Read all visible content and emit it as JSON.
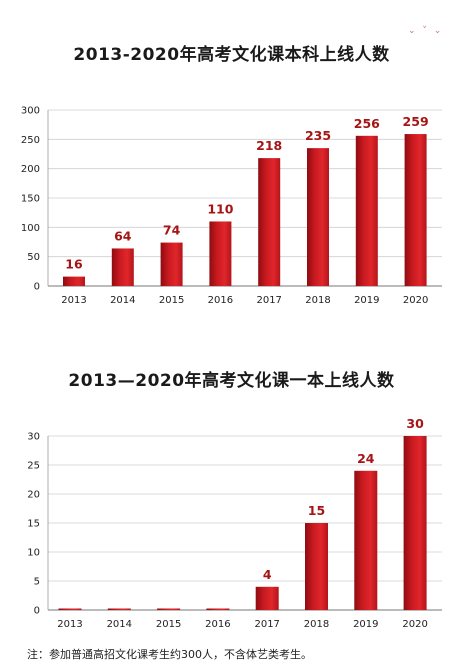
{
  "chart_data": [
    {
      "type": "bar",
      "title": "2013-2020年高考文化课本科上线人数",
      "categories": [
        "2013",
        "2014",
        "2015",
        "2016",
        "2017",
        "2018",
        "2019",
        "2020"
      ],
      "values": [
        16,
        64,
        74,
        110,
        218,
        235,
        256,
        259
      ],
      "ylim": [
        0,
        300
      ],
      "yticks": [
        0,
        50,
        100,
        150,
        200,
        250,
        300
      ],
      "grid": true,
      "colors": {
        "bar_dark": "#9e0f14",
        "bar_light": "#e0262b",
        "label": "#a51515"
      }
    },
    {
      "type": "bar",
      "title": "2013—2020年高考文化课一本上线人数",
      "categories": [
        "2013",
        "2014",
        "2015",
        "2016",
        "2017",
        "2018",
        "2019",
        "2020"
      ],
      "values": [
        0,
        0,
        0,
        0,
        4,
        15,
        24,
        30
      ],
      "data_labels": [
        "",
        "",
        "",
        "",
        "4",
        "15",
        "24",
        "30"
      ],
      "ylim": [
        0,
        30
      ],
      "yticks": [
        0,
        5,
        10,
        15,
        20,
        25,
        30
      ],
      "grid": true,
      "colors": {
        "bar_dark": "#9e0f14",
        "bar_light": "#e0262b",
        "label": "#a51515"
      }
    }
  ],
  "footnote": "注：参加普通高招文化课考生约300人，不含体艺类考生。"
}
